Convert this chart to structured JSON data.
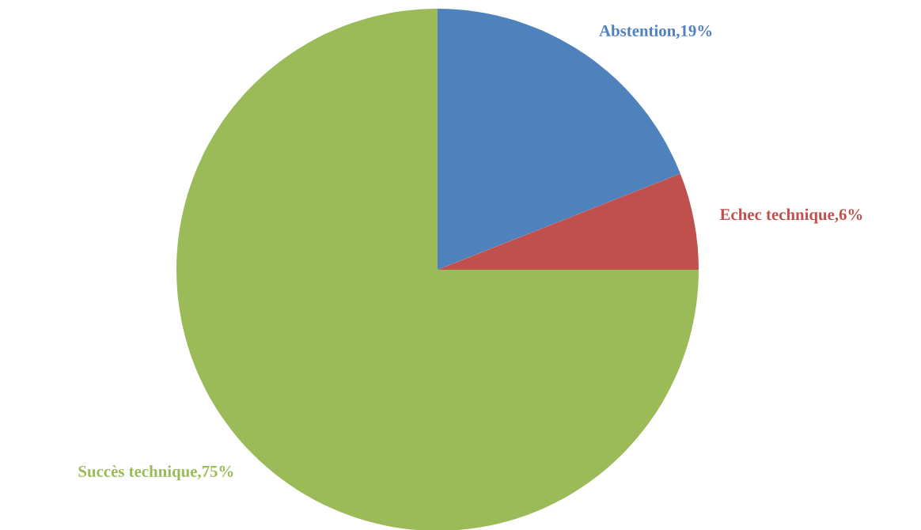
{
  "chart_data": {
    "type": "pie",
    "categories": [
      "Abstention",
      "Echec technique",
      "Succès technique"
    ],
    "values": [
      19,
      6,
      75
    ],
    "value_labels": [
      "19%",
      "6%",
      "75%"
    ],
    "colors": [
      "#4f81bd",
      "#c0504d",
      "#9bbb59"
    ],
    "legend": false
  }
}
